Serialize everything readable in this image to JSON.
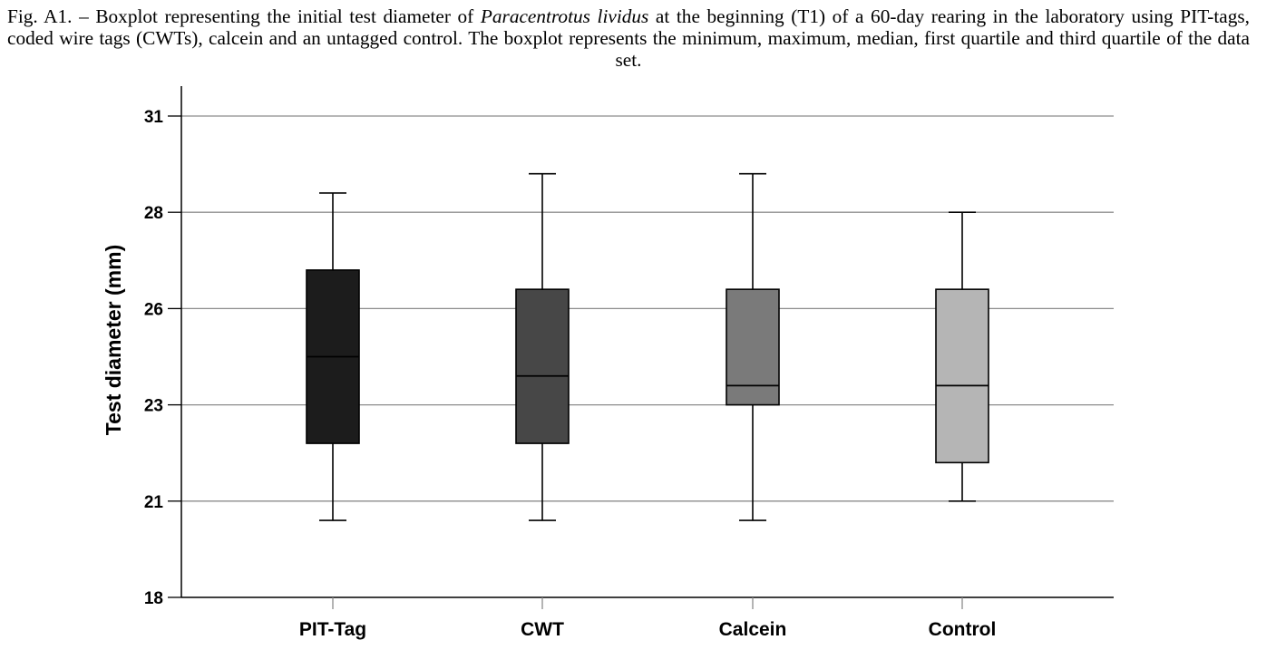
{
  "caption": {
    "prefix": "Fig. A1. – Boxplot representing the initial test diameter of ",
    "species": "Paracentrotus lividus",
    "suffix": " at the beginning (T1) of a 60-day rearing in the laboratory using PIT-tags, coded wire tags (CWTs), calcein and an untagged control. The boxplot represents the minimum, maximum, median, first quartile and third quartile of the data set."
  },
  "chart_data": {
    "type": "boxplot",
    "xlabel": "",
    "ylabel": "Test diameter (mm)",
    "ylim": [
      18,
      31
    ],
    "yticks": [
      {
        "label": "18",
        "value": 18
      },
      {
        "label": "21",
        "value": 20.5
      },
      {
        "label": "23",
        "value": 23
      },
      {
        "label": "26",
        "value": 25.5
      },
      {
        "label": "28",
        "value": 28
      },
      {
        "label": "31",
        "value": 30.5
      }
    ],
    "grid": true,
    "categories": [
      "PIT-Tag",
      "CWT",
      "Calcein",
      "Control"
    ],
    "boxes": [
      {
        "category": "PIT-Tag",
        "min": 20.0,
        "q1": 22.0,
        "median": 24.25,
        "q3": 26.5,
        "max": 28.5,
        "color": "#1c1c1c"
      },
      {
        "category": "CWT",
        "min": 20.0,
        "q1": 22.0,
        "median": 23.75,
        "q3": 26.0,
        "max": 29.0,
        "color": "#474747"
      },
      {
        "category": "Calcein",
        "min": 20.0,
        "q1": 23.0,
        "median": 23.5,
        "q3": 26.0,
        "max": 29.0,
        "color": "#7a7a7a"
      },
      {
        "category": "Control",
        "min": 20.5,
        "q1": 21.5,
        "median": 23.5,
        "q3": 26.0,
        "max": 28.0,
        "color": "#b5b5b5"
      }
    ]
  }
}
